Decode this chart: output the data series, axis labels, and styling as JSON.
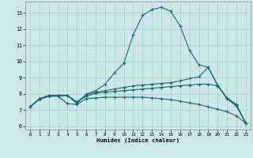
{
  "xlabel": "Humidex (Indice chaleur)",
  "bg_color": "#cde8e8",
  "grid_color": "#aacccc",
  "line_color": "#1a6b6b",
  "xlim": [
    -0.5,
    23.5
  ],
  "ylim": [
    5.8,
    13.7
  ],
  "xticks": [
    0,
    1,
    2,
    3,
    4,
    5,
    6,
    7,
    8,
    9,
    10,
    11,
    12,
    13,
    14,
    15,
    16,
    17,
    18,
    19,
    20,
    21,
    22,
    23
  ],
  "yticks": [
    6,
    7,
    8,
    9,
    10,
    11,
    12,
    13
  ],
  "line1_x": [
    0,
    1,
    2,
    3,
    4,
    5,
    6,
    7,
    8,
    9,
    10,
    11,
    12,
    13,
    14,
    15,
    16,
    17,
    18,
    19,
    20,
    21,
    22,
    23
  ],
  "line1_y": [
    7.2,
    7.7,
    7.9,
    7.9,
    7.9,
    7.4,
    8.0,
    8.2,
    8.6,
    9.3,
    9.9,
    11.65,
    12.85,
    13.2,
    13.35,
    13.1,
    12.2,
    10.7,
    9.8,
    9.65,
    8.5,
    7.75,
    7.35,
    6.2
  ],
  "line2_x": [
    0,
    1,
    2,
    3,
    4,
    5,
    6,
    7,
    8,
    9,
    10,
    11,
    12,
    13,
    14,
    15,
    16,
    17,
    18,
    19,
    20,
    21,
    22,
    23
  ],
  "line2_y": [
    7.2,
    7.7,
    7.9,
    7.9,
    7.9,
    7.5,
    7.95,
    8.1,
    8.2,
    8.3,
    8.4,
    8.5,
    8.55,
    8.6,
    8.65,
    8.7,
    8.8,
    8.95,
    9.05,
    9.65,
    8.55,
    7.75,
    7.3,
    6.2
  ],
  "line3_x": [
    0,
    1,
    2,
    3,
    4,
    5,
    6,
    7,
    8,
    9,
    10,
    11,
    12,
    13,
    14,
    15,
    16,
    17,
    18,
    19,
    20,
    21,
    22,
    23
  ],
  "line3_y": [
    7.2,
    7.7,
    7.9,
    7.9,
    7.9,
    7.5,
    7.85,
    8.05,
    8.1,
    8.15,
    8.2,
    8.25,
    8.3,
    8.35,
    8.4,
    8.45,
    8.5,
    8.55,
    8.6,
    8.6,
    8.5,
    7.7,
    7.25,
    6.2
  ],
  "line4_x": [
    0,
    1,
    2,
    3,
    4,
    5,
    6,
    7,
    8,
    9,
    10,
    11,
    12,
    13,
    14,
    15,
    16,
    17,
    18,
    19,
    20,
    21,
    22,
    23
  ],
  "line4_y": [
    7.2,
    7.65,
    7.85,
    7.85,
    7.4,
    7.35,
    7.7,
    7.75,
    7.8,
    7.8,
    7.8,
    7.8,
    7.8,
    7.75,
    7.7,
    7.65,
    7.55,
    7.45,
    7.35,
    7.2,
    7.05,
    6.9,
    6.65,
    6.2
  ]
}
